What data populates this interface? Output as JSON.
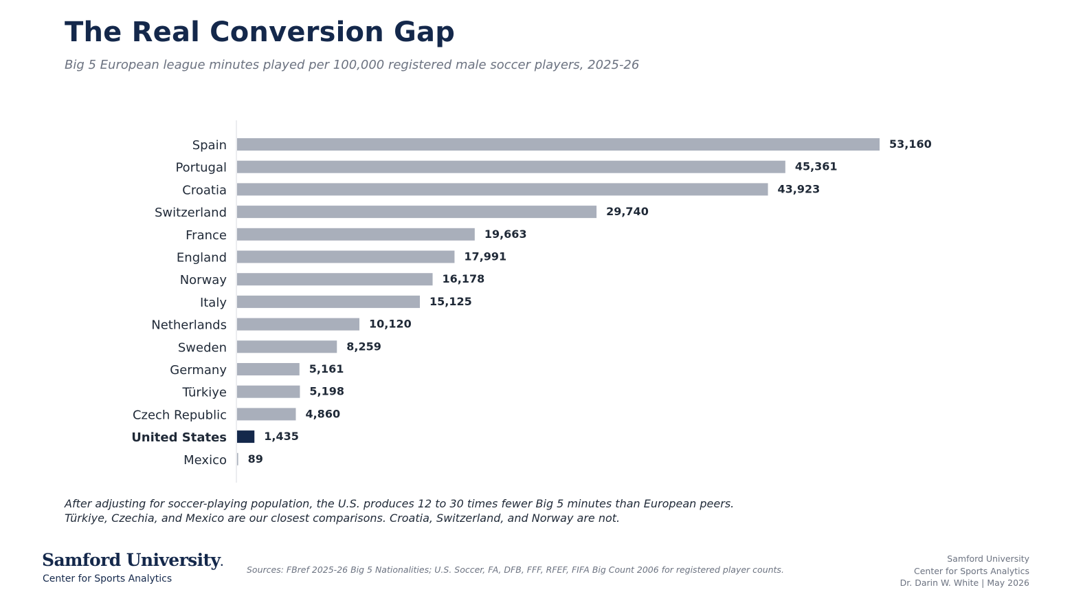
{
  "header": {
    "title": "The Real Conversion Gap",
    "subtitle": "Big 5 European league minutes played per 100,000 registered male soccer players, 2025-26"
  },
  "chart_data": {
    "type": "bar",
    "orientation": "horizontal",
    "categories": [
      "Spain",
      "Portugal",
      "Croatia",
      "Switzerland",
      "France",
      "England",
      "Norway",
      "Italy",
      "Netherlands",
      "Sweden",
      "Germany",
      "Türkiye",
      "Czech Republic",
      "United States",
      "Mexico"
    ],
    "values": [
      53160,
      45361,
      43923,
      29740,
      19663,
      17991,
      16178,
      15125,
      10120,
      8259,
      5161,
      5198,
      4860,
      1435,
      89
    ],
    "value_labels": [
      "53,160",
      "45,361",
      "43,923",
      "29,740",
      "19,663",
      "17,991",
      "16,178",
      "15,125",
      "10,120",
      "8,259",
      "5,161",
      "5,198",
      "4,860",
      "1,435",
      "89"
    ],
    "highlight": "United States",
    "xlim": [
      0,
      53160
    ],
    "grid": false,
    "colors": {
      "default": "#a9afbb",
      "highlight": "#14284b",
      "axis": "#e5e7eb",
      "label": "#1f2937"
    }
  },
  "note": {
    "line1": "After adjusting for soccer-playing population, the U.S. produces 12 to 30 times fewer Big 5 minutes than European peers.",
    "line2": "Türkiye, Czechia, and Mexico are our closest comparisons. Croatia, Switzerland, and Norway are not."
  },
  "footer": {
    "logo_name": "Samford University",
    "logo_mark": ".",
    "logo_sub": "Center for Sports Analytics",
    "sources": "Sources: FBref 2025-26 Big 5 Nationalities; U.S. Soccer, FA, DFB, FFF, RFEF, FIFA Big Count 2006 for registered player counts.",
    "credit_line1": "Samford University",
    "credit_line2": "Center for Sports Analytics",
    "credit_line3": "Dr. Darin W. White | May 2026"
  }
}
